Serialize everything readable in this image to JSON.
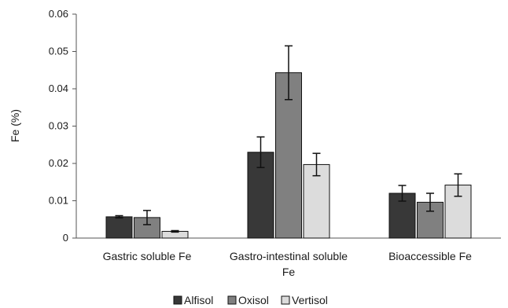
{
  "chart_data": {
    "type": "bar",
    "title": "",
    "xlabel": "",
    "ylabel": "Fe (%)",
    "ylim": [
      0,
      0.06
    ],
    "yticks": [
      "0",
      "0.01",
      "0.02",
      "0.03",
      "0.04",
      "0.05",
      "0.06"
    ],
    "grid": false,
    "legend_position": "bottom",
    "categories": [
      [
        "Gastric soluble Fe"
      ],
      [
        "Gastro-intestinal soluble",
        "Fe"
      ],
      [
        "Bioaccessible Fe"
      ]
    ],
    "series": [
      {
        "name": "Alfisol",
        "color": "#383838",
        "values": [
          0.0057,
          0.023,
          0.012
        ],
        "errors": [
          0.0003,
          0.0041,
          0.0021
        ]
      },
      {
        "name": "Oxisol",
        "color": "#808080",
        "values": [
          0.0055,
          0.0443,
          0.0096
        ],
        "errors": [
          0.0019,
          0.0072,
          0.0024
        ]
      },
      {
        "name": "Vertisol",
        "color": "#dcdcdc",
        "values": [
          0.0018,
          0.0197,
          0.0142
        ],
        "errors": [
          0.0002,
          0.003,
          0.003
        ]
      }
    ]
  }
}
